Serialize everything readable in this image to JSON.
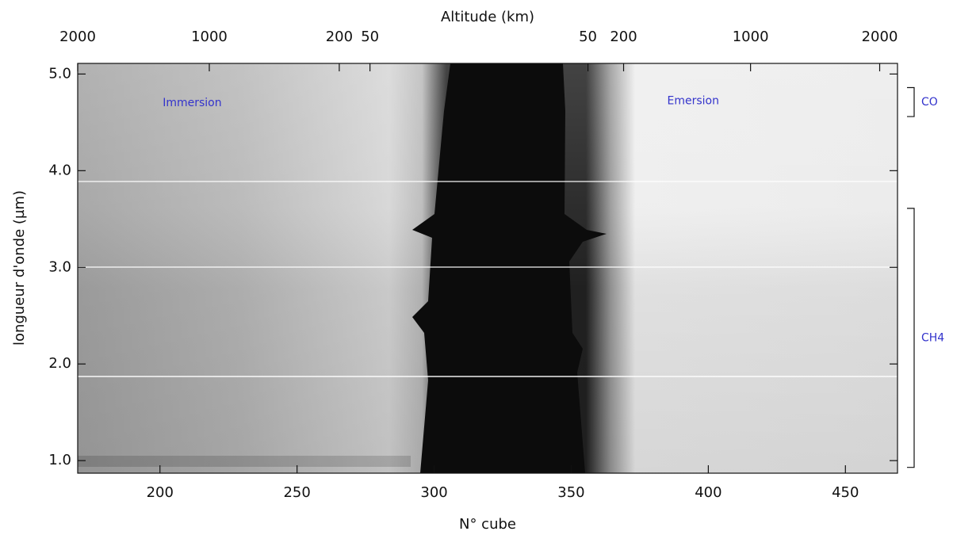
{
  "chart_data": {
    "type": "image",
    "title": "Altitude (km)",
    "x_label": "N° cube",
    "y_label": "longueur d'onde (µm)",
    "xlim": [
      170,
      469
    ],
    "xticks": [
      200,
      250,
      300,
      350,
      400,
      450
    ],
    "ylim": [
      0.87,
      5.11
    ],
    "yticks": [
      {
        "value": 1,
        "label": "1.0"
      },
      {
        "value": 2,
        "label": "2.0"
      },
      {
        "value": 3,
        "label": "3.0"
      },
      {
        "value": 4,
        "label": "4.0"
      },
      {
        "value": 5,
        "label": "5.0"
      }
    ],
    "top_ticks": [
      {
        "altitude": 2000,
        "x": 170
      },
      {
        "altitude": 1000,
        "x": 218
      },
      {
        "altitude": 200,
        "x": 265.4
      },
      {
        "altitude": 50,
        "x": 276.6
      },
      {
        "altitude": 50,
        "x": 356.1
      },
      {
        "altitude": 200,
        "x": 369.1
      },
      {
        "altitude": 1000,
        "x": 415.4
      },
      {
        "altitude": 2000,
        "x": 462.5
      }
    ],
    "annotations": [
      {
        "text": "Immersion",
        "x": 201,
        "y": 4.7
      },
      {
        "text": "Emersion",
        "x": 385,
        "y": 4.72
      }
    ],
    "bands": [
      {
        "label": "CO",
        "range": [
          4.56,
          4.86
        ]
      },
      {
        "label": "CH4",
        "range": [
          0.93,
          3.61
        ]
      }
    ],
    "color": "#3333cc"
  }
}
